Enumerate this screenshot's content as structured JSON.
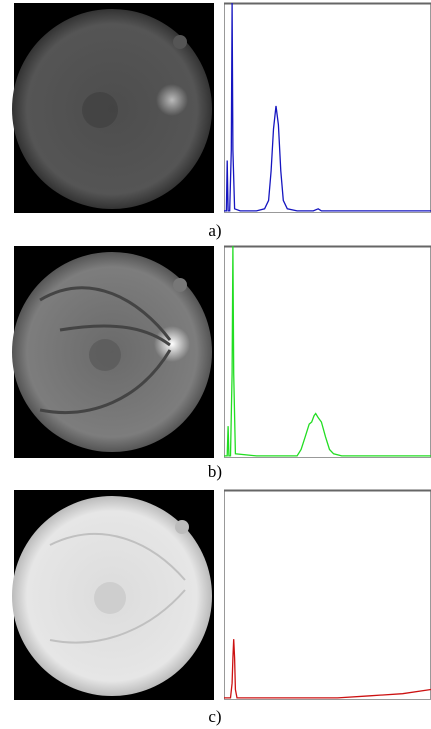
{
  "chart_data": [
    {
      "type": "line",
      "caption": "a)",
      "xlim": [
        0,
        255
      ],
      "ylim": [
        0,
        1
      ],
      "x": [
        0,
        3,
        4,
        5,
        7,
        9,
        10,
        11,
        13,
        20,
        40,
        50,
        55,
        58,
        61,
        64,
        67,
        70,
        73,
        78,
        90,
        110,
        116,
        120,
        140,
        200,
        255
      ],
      "series": [
        {
          "color": "#1515c0",
          "values": [
            0.01,
            0.01,
            0.25,
            0.01,
            0.01,
            0.3,
            1.0,
            0.3,
            0.02,
            0.01,
            0.01,
            0.02,
            0.06,
            0.2,
            0.4,
            0.51,
            0.42,
            0.2,
            0.06,
            0.02,
            0.01,
            0.01,
            0.02,
            0.01,
            0.01,
            0.01,
            0.01
          ]
        }
      ]
    },
    {
      "type": "line",
      "caption": "b)",
      "xlim": [
        0,
        255
      ],
      "ylim": [
        0,
        1
      ],
      "x": [
        0,
        4,
        5,
        6,
        8,
        10,
        11,
        12,
        14,
        40,
        80,
        90,
        95,
        100,
        105,
        108,
        111,
        113,
        116,
        120,
        125,
        130,
        135,
        145,
        160,
        255
      ],
      "series": [
        {
          "color": "#22dd22",
          "values": [
            0.01,
            0.01,
            0.15,
            0.01,
            0.01,
            0.4,
            1.0,
            0.4,
            0.02,
            0.01,
            0.01,
            0.01,
            0.04,
            0.1,
            0.16,
            0.17,
            0.2,
            0.21,
            0.19,
            0.17,
            0.1,
            0.04,
            0.02,
            0.01,
            0.01,
            0.01
          ]
        }
      ]
    },
    {
      "type": "line",
      "caption": "c)",
      "xlim": [
        0,
        255
      ],
      "ylim": [
        0,
        1
      ],
      "x": [
        0,
        8,
        10,
        11,
        12,
        13,
        14,
        16,
        40,
        100,
        140,
        180,
        220,
        255
      ],
      "series": [
        {
          "color": "#cc1111",
          "values": [
            0.01,
            0.01,
            0.08,
            0.2,
            0.29,
            0.2,
            0.05,
            0.01,
            0.01,
            0.01,
            0.01,
            0.02,
            0.03,
            0.05
          ]
        }
      ]
    }
  ]
}
